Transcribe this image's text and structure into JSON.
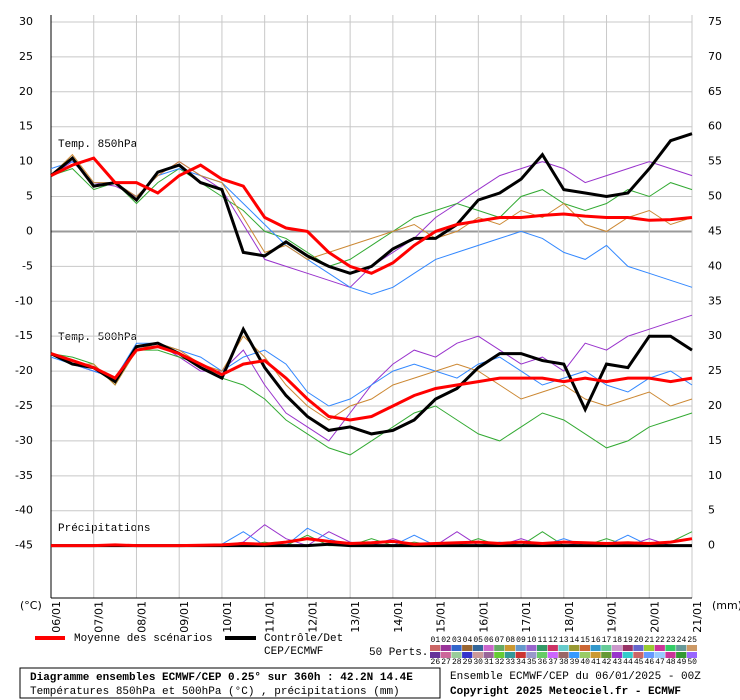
{
  "chart_data": {
    "type": "line",
    "x": [
      0,
      12,
      24,
      36,
      48,
      60,
      72,
      84,
      96,
      108,
      120,
      132,
      144,
      156,
      168,
      180,
      192,
      204,
      216,
      228,
      240,
      252,
      264,
      276,
      288,
      300,
      312,
      324,
      336,
      348,
      360
    ],
    "xlim": [
      0,
      360
    ],
    "xticks": [
      {
        "value": 0,
        "label": "06/01"
      },
      {
        "value": 24,
        "label": "07/01"
      },
      {
        "value": 48,
        "label": "08/01"
      },
      {
        "value": 72,
        "label": "09/01"
      },
      {
        "value": 96,
        "label": "10/01"
      },
      {
        "value": 120,
        "label": "11/01"
      },
      {
        "value": 144,
        "label": "12/01"
      },
      {
        "value": 168,
        "label": "13/01"
      },
      {
        "value": 192,
        "label": "14/01"
      },
      {
        "value": 216,
        "label": "15/01"
      },
      {
        "value": 240,
        "label": "16/01"
      },
      {
        "value": 264,
        "label": "17/01"
      },
      {
        "value": 288,
        "label": "18/01"
      },
      {
        "value": 312,
        "label": "19/01"
      },
      {
        "value": 336,
        "label": "20/01"
      },
      {
        "value": 360,
        "label": "21/01"
      }
    ],
    "ylim": [
      -52.5,
      31
    ],
    "yticks": [
      30,
      25,
      20,
      15,
      10,
      5,
      0,
      -5,
      -10,
      -15,
      -20,
      -25,
      -30,
      -35,
      -40,
      -45
    ],
    "y2lim": [
      -7.5,
      76
    ],
    "y2ticks": [
      75,
      70,
      65,
      60,
      55,
      50,
      45,
      40,
      35,
      30,
      25,
      20,
      15,
      10,
      5,
      0
    ],
    "ylabel": "(°C)",
    "y2label": "(mm)",
    "grid": true,
    "panels": [
      {
        "label": "Temp. 850hPa",
        "axis": "y",
        "mean": {
          "color": "#ff0000",
          "values": [
            8,
            9.5,
            10.5,
            7,
            7,
            5.5,
            8,
            9.5,
            7.5,
            6.5,
            2,
            0.5,
            0,
            -3,
            -5,
            -6,
            -4.5,
            -2,
            0,
            1,
            1.5,
            2,
            2,
            2.3,
            2.5,
            2.2,
            2,
            2,
            1.6,
            1.7,
            2
          ]
        },
        "control": {
          "color": "#000000",
          "values": [
            8,
            10.5,
            6.5,
            7,
            4.5,
            8.5,
            9.5,
            7,
            6,
            -3,
            -3.5,
            -1.5,
            -3.5,
            -5,
            -6,
            -5,
            -2.5,
            -1,
            -1,
            1,
            4.5,
            5.5,
            7.5,
            11,
            6,
            5.5,
            5,
            5.5,
            9,
            13,
            14
          ]
        },
        "members": [
          {
            "color": "#9933cc",
            "values": [
              8,
              10,
              7,
              6.5,
              5,
              8,
              10,
              8,
              6,
              1,
              -4,
              -5,
              -6,
              -7,
              -8,
              -5,
              -3,
              -1,
              2,
              4,
              6,
              8,
              9,
              10,
              9,
              7,
              8,
              9,
              10,
              9,
              8
            ]
          },
          {
            "color": "#33aa33",
            "values": [
              8,
              9,
              6,
              7,
              4,
              7,
              9,
              7,
              5,
              3,
              0,
              -1,
              -3,
              -5,
              -4,
              -2,
              0,
              2,
              3,
              4,
              3,
              2,
              5,
              6,
              4,
              3,
              4,
              6,
              5,
              7,
              6
            ]
          },
          {
            "color": "#3388ff",
            "values": [
              9,
              10,
              7,
              7,
              5,
              8,
              9,
              8,
              7,
              4,
              1,
              -2,
              -4,
              -6,
              -8,
              -9,
              -8,
              -6,
              -4,
              -3,
              -2,
              -1,
              0,
              -1,
              -3,
              -4,
              -2,
              -5,
              -6,
              -7,
              -8
            ]
          },
          {
            "color": "#cc8833",
            "values": [
              8,
              11,
              7,
              7,
              5,
              8,
              10,
              8,
              7,
              2,
              -3,
              -2,
              -4,
              -3,
              -2,
              -1,
              0,
              1,
              -1,
              0,
              2,
              1,
              3,
              2,
              4,
              1,
              0,
              2,
              3,
              1,
              2
            ]
          }
        ]
      },
      {
        "label": "Temp. 500hPa",
        "axis": "y",
        "mean": {
          "color": "#ff0000",
          "values": [
            -17.5,
            -18.5,
            -19.5,
            -21,
            -17,
            -16.5,
            -17.5,
            -19,
            -20.5,
            -19,
            -18.5,
            -21,
            -24,
            -26.5,
            -27,
            -26.5,
            -25,
            -23.5,
            -22.5,
            -22,
            -21.5,
            -21,
            -21,
            -21,
            -21.5,
            -21,
            -21.5,
            -21,
            -21,
            -21.5,
            -21
          ]
        },
        "control": {
          "color": "#000000",
          "values": [
            -17.5,
            -19,
            -19.5,
            -21.5,
            -16.5,
            -16,
            -17.5,
            -19.5,
            -21,
            -14,
            -19.5,
            -23.5,
            -26.5,
            -28.5,
            -28,
            -29,
            -28.5,
            -27,
            -24,
            -22.5,
            -19.5,
            -17.5,
            -17.5,
            -18.5,
            -19,
            -25.5,
            -19,
            -19.5,
            -15,
            -15,
            -17
          ]
        },
        "members": [
          {
            "color": "#9933cc",
            "values": [
              -17.5,
              -19,
              -20,
              -21,
              -17,
              -16,
              -18,
              -20,
              -20,
              -17,
              -22,
              -26,
              -28,
              -30,
              -26,
              -22,
              -19,
              -17,
              -18,
              -16,
              -15,
              -17,
              -19,
              -18,
              -20,
              -16,
              -17,
              -15,
              -14,
              -13,
              -12
            ]
          },
          {
            "color": "#33aa33",
            "values": [
              -17.5,
              -18,
              -19,
              -22,
              -17,
              -17,
              -18,
              -19,
              -21,
              -22,
              -24,
              -27,
              -29,
              -31,
              -32,
              -30,
              -28,
              -26,
              -25,
              -27,
              -29,
              -30,
              -28,
              -26,
              -27,
              -29,
              -31,
              -30,
              -28,
              -27,
              -26
            ]
          },
          {
            "color": "#3388ff",
            "values": [
              -18,
              -19,
              -20,
              -21,
              -16,
              -16,
              -17,
              -18,
              -20,
              -18,
              -17,
              -19,
              -23,
              -25,
              -24,
              -22,
              -20,
              -19,
              -20,
              -21,
              -19,
              -18,
              -20,
              -22,
              -21,
              -20,
              -22,
              -23,
              -21,
              -20,
              -22
            ]
          },
          {
            "color": "#cc8833",
            "values": [
              -17.5,
              -19,
              -19,
              -22,
              -17,
              -16,
              -17,
              -19,
              -20,
              -15,
              -18,
              -22,
              -25,
              -27,
              -25,
              -24,
              -22,
              -21,
              -20,
              -19,
              -20,
              -22,
              -24,
              -23,
              -22,
              -24,
              -25,
              -24,
              -23,
              -25,
              -24
            ]
          }
        ]
      },
      {
        "label": "Précipitations",
        "axis": "y2",
        "mean": {
          "color": "#ff0000",
          "values": [
            0,
            0,
            0,
            0.1,
            0,
            0,
            0,
            0.05,
            0.1,
            0.3,
            0.2,
            0.5,
            1,
            0.6,
            0.3,
            0.4,
            0.6,
            0.2,
            0.3,
            0.4,
            0.5,
            0.3,
            0.5,
            0.3,
            0.5,
            0.4,
            0.3,
            0.4,
            0.3,
            0.5,
            1
          ]
        },
        "control": {
          "color": "#000000",
          "values": [
            0,
            0,
            0,
            0,
            0,
            0,
            0,
            0,
            0,
            0,
            0,
            0,
            0,
            0.2,
            0,
            0,
            0,
            0,
            0,
            0,
            0,
            0,
            0,
            0,
            0,
            0,
            0,
            0,
            0,
            0,
            0
          ]
        },
        "members": [
          {
            "color": "#9933cc",
            "values": [
              0,
              0,
              0,
              0,
              0,
              0,
              0,
              0,
              0,
              0.5,
              3,
              1,
              0,
              2,
              0.5,
              0,
              1,
              0,
              0,
              2,
              0,
              0,
              1,
              0,
              0,
              0.5,
              0,
              0,
              1,
              0,
              0
            ]
          },
          {
            "color": "#33aa33",
            "values": [
              0,
              0,
              0,
              0.2,
              0,
              0,
              0,
              0,
              0,
              0,
              0.5,
              0,
              1.5,
              0,
              0,
              1,
              0,
              0.5,
              0,
              0,
              1,
              0,
              0,
              2,
              0,
              0,
              1,
              0,
              0,
              0.5,
              2
            ]
          },
          {
            "color": "#3388ff",
            "values": [
              0,
              0,
              0,
              0,
              0,
              0,
              0,
              0,
              0.2,
              2,
              0,
              0,
              2.5,
              1,
              0,
              0,
              0,
              1.5,
              0,
              0,
              0,
              0.5,
              0,
              0,
              1,
              0,
              0,
              1.5,
              0,
              0,
              0
            ]
          }
        ]
      }
    ],
    "legend": {
      "mean": "Moyenne des scénarios",
      "control": [
        "Contrôle/Det",
        "CEP/ECMWF"
      ],
      "perts": "50 Perts."
    },
    "perts": [
      "01",
      "02",
      "03",
      "04",
      "05",
      "06",
      "07",
      "08",
      "09",
      "10",
      "11",
      "12",
      "13",
      "14",
      "15",
      "16",
      "17",
      "18",
      "19",
      "20",
      "21",
      "22",
      "23",
      "24",
      "25",
      "26",
      "27",
      "28",
      "29",
      "30",
      "31",
      "32",
      "33",
      "34",
      "35",
      "36",
      "37",
      "38",
      "39",
      "40",
      "41",
      "42",
      "43",
      "44",
      "45",
      "46",
      "47",
      "48",
      "49",
      "50"
    ],
    "pert_colors": [
      "#cc6666",
      "#993399",
      "#3366cc",
      "#996633",
      "#336699",
      "#cc66cc",
      "#66aa66",
      "#cc9933",
      "#6699cc",
      "#9966cc",
      "#339966",
      "#cc3366",
      "#66cccc",
      "#999933",
      "#cc6633",
      "#3399cc",
      "#66cc99",
      "#cc99cc",
      "#993366",
      "#6666cc",
      "#99cc33",
      "#cc3399",
      "#33cc66",
      "#669999",
      "#cc9966",
      "#663399",
      "#cc6699",
      "#99cc99",
      "#3333cc",
      "#cc9999",
      "#996699",
      "#66cc33",
      "#339999",
      "#cc3333",
      "#9999cc",
      "#66cc66",
      "#cc66ff",
      "#996666",
      "#3399ff",
      "#99cc66",
      "#cc9933",
      "#669933",
      "#9933cc",
      "#33cccc",
      "#cc6666",
      "#6699ff",
      "#99ccff",
      "#cc3399",
      "#339933",
      "#9966ff"
    ],
    "footer": {
      "title": "Diagramme ensembles ECMWF/CEP 0.25° sur 360h : 42.2N 14.4E",
      "subtitle": "Températures 850hPa et 500hPa (°C) , précipitations (mm)",
      "run": "Ensemble ECMWF/CEP du 06/01/2025 - 00Z",
      "copyright": "Copyright 2025 Meteociel.fr - ECMWF"
    }
  }
}
